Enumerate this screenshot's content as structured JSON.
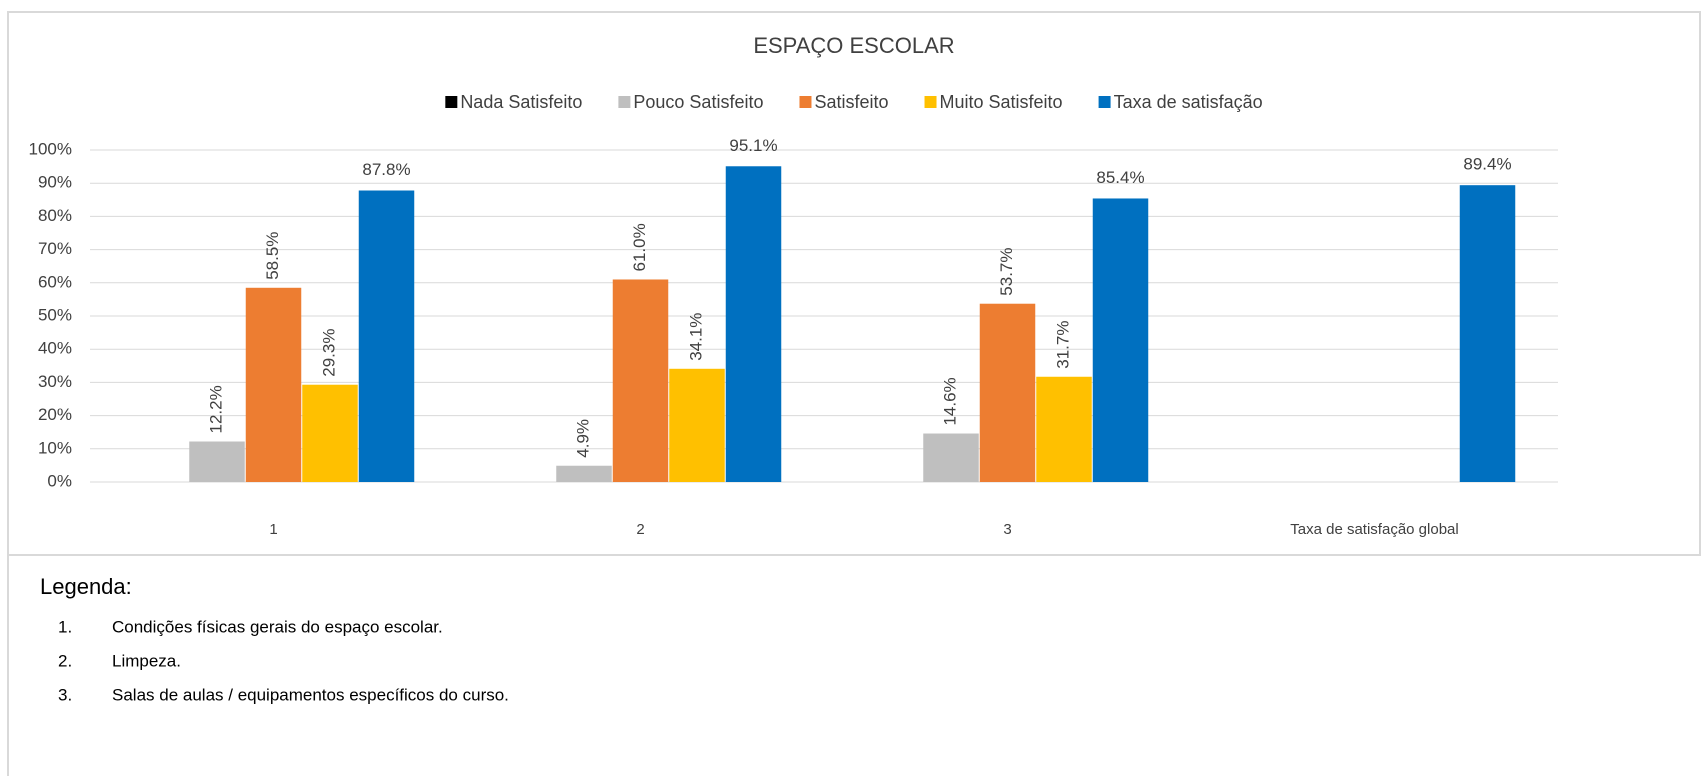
{
  "chart_data": {
    "type": "bar",
    "title": "ESPAÇO ESCOLAR",
    "categories": [
      "1",
      "2",
      "3",
      "Taxa de satisfação global"
    ],
    "series": [
      {
        "name": "Nada Satisfeito",
        "color": "#000000",
        "values": [
          null,
          null,
          null,
          null
        ]
      },
      {
        "name": "Pouco Satisfeito",
        "color": "#bfbfbf",
        "values": [
          12.2,
          4.9,
          14.6,
          null
        ],
        "value_labels": [
          "12.2%",
          "4.9%",
          "14.6%",
          null
        ]
      },
      {
        "name": "Satisfeito",
        "color": "#ed7d31",
        "values": [
          58.5,
          61.0,
          53.7,
          null
        ],
        "value_labels": [
          "58.5%",
          "61.0%",
          "53.7%",
          null
        ]
      },
      {
        "name": "Muito Satisfeito",
        "color": "#ffc000",
        "values": [
          29.3,
          34.1,
          31.7,
          null
        ],
        "value_labels": [
          "29.3%",
          "34.1%",
          "31.7%",
          null
        ]
      },
      {
        "name": "Taxa de satisfação",
        "color": "#0070c0",
        "values": [
          87.8,
          95.1,
          85.4,
          89.4
        ],
        "value_labels": [
          "87.8%",
          "95.1%",
          "85.4%",
          "89.4%"
        ]
      }
    ],
    "ylim": [
      0,
      100
    ],
    "yticks": [
      {
        "value": 0,
        "label": "0%"
      },
      {
        "value": 10,
        "label": "10%"
      },
      {
        "value": 20,
        "label": "20%"
      },
      {
        "value": 30,
        "label": "30%"
      },
      {
        "value": 40,
        "label": "40%"
      },
      {
        "value": 50,
        "label": "50%"
      },
      {
        "value": 60,
        "label": "60%"
      },
      {
        "value": 70,
        "label": "70%"
      },
      {
        "value": 80,
        "label": "80%"
      },
      {
        "value": 90,
        "label": "90%"
      },
      {
        "value": 100,
        "label": "100%"
      }
    ],
    "grid": true,
    "legend": "top"
  },
  "legend_section": {
    "title": "Legenda:",
    "items": [
      {
        "number": "1.",
        "text": "Condições físicas gerais do espaço escolar."
      },
      {
        "number": "2.",
        "text": "Limpeza."
      },
      {
        "number": "3.",
        "text": "Salas de aulas / equipamentos específicos do curso."
      }
    ]
  }
}
